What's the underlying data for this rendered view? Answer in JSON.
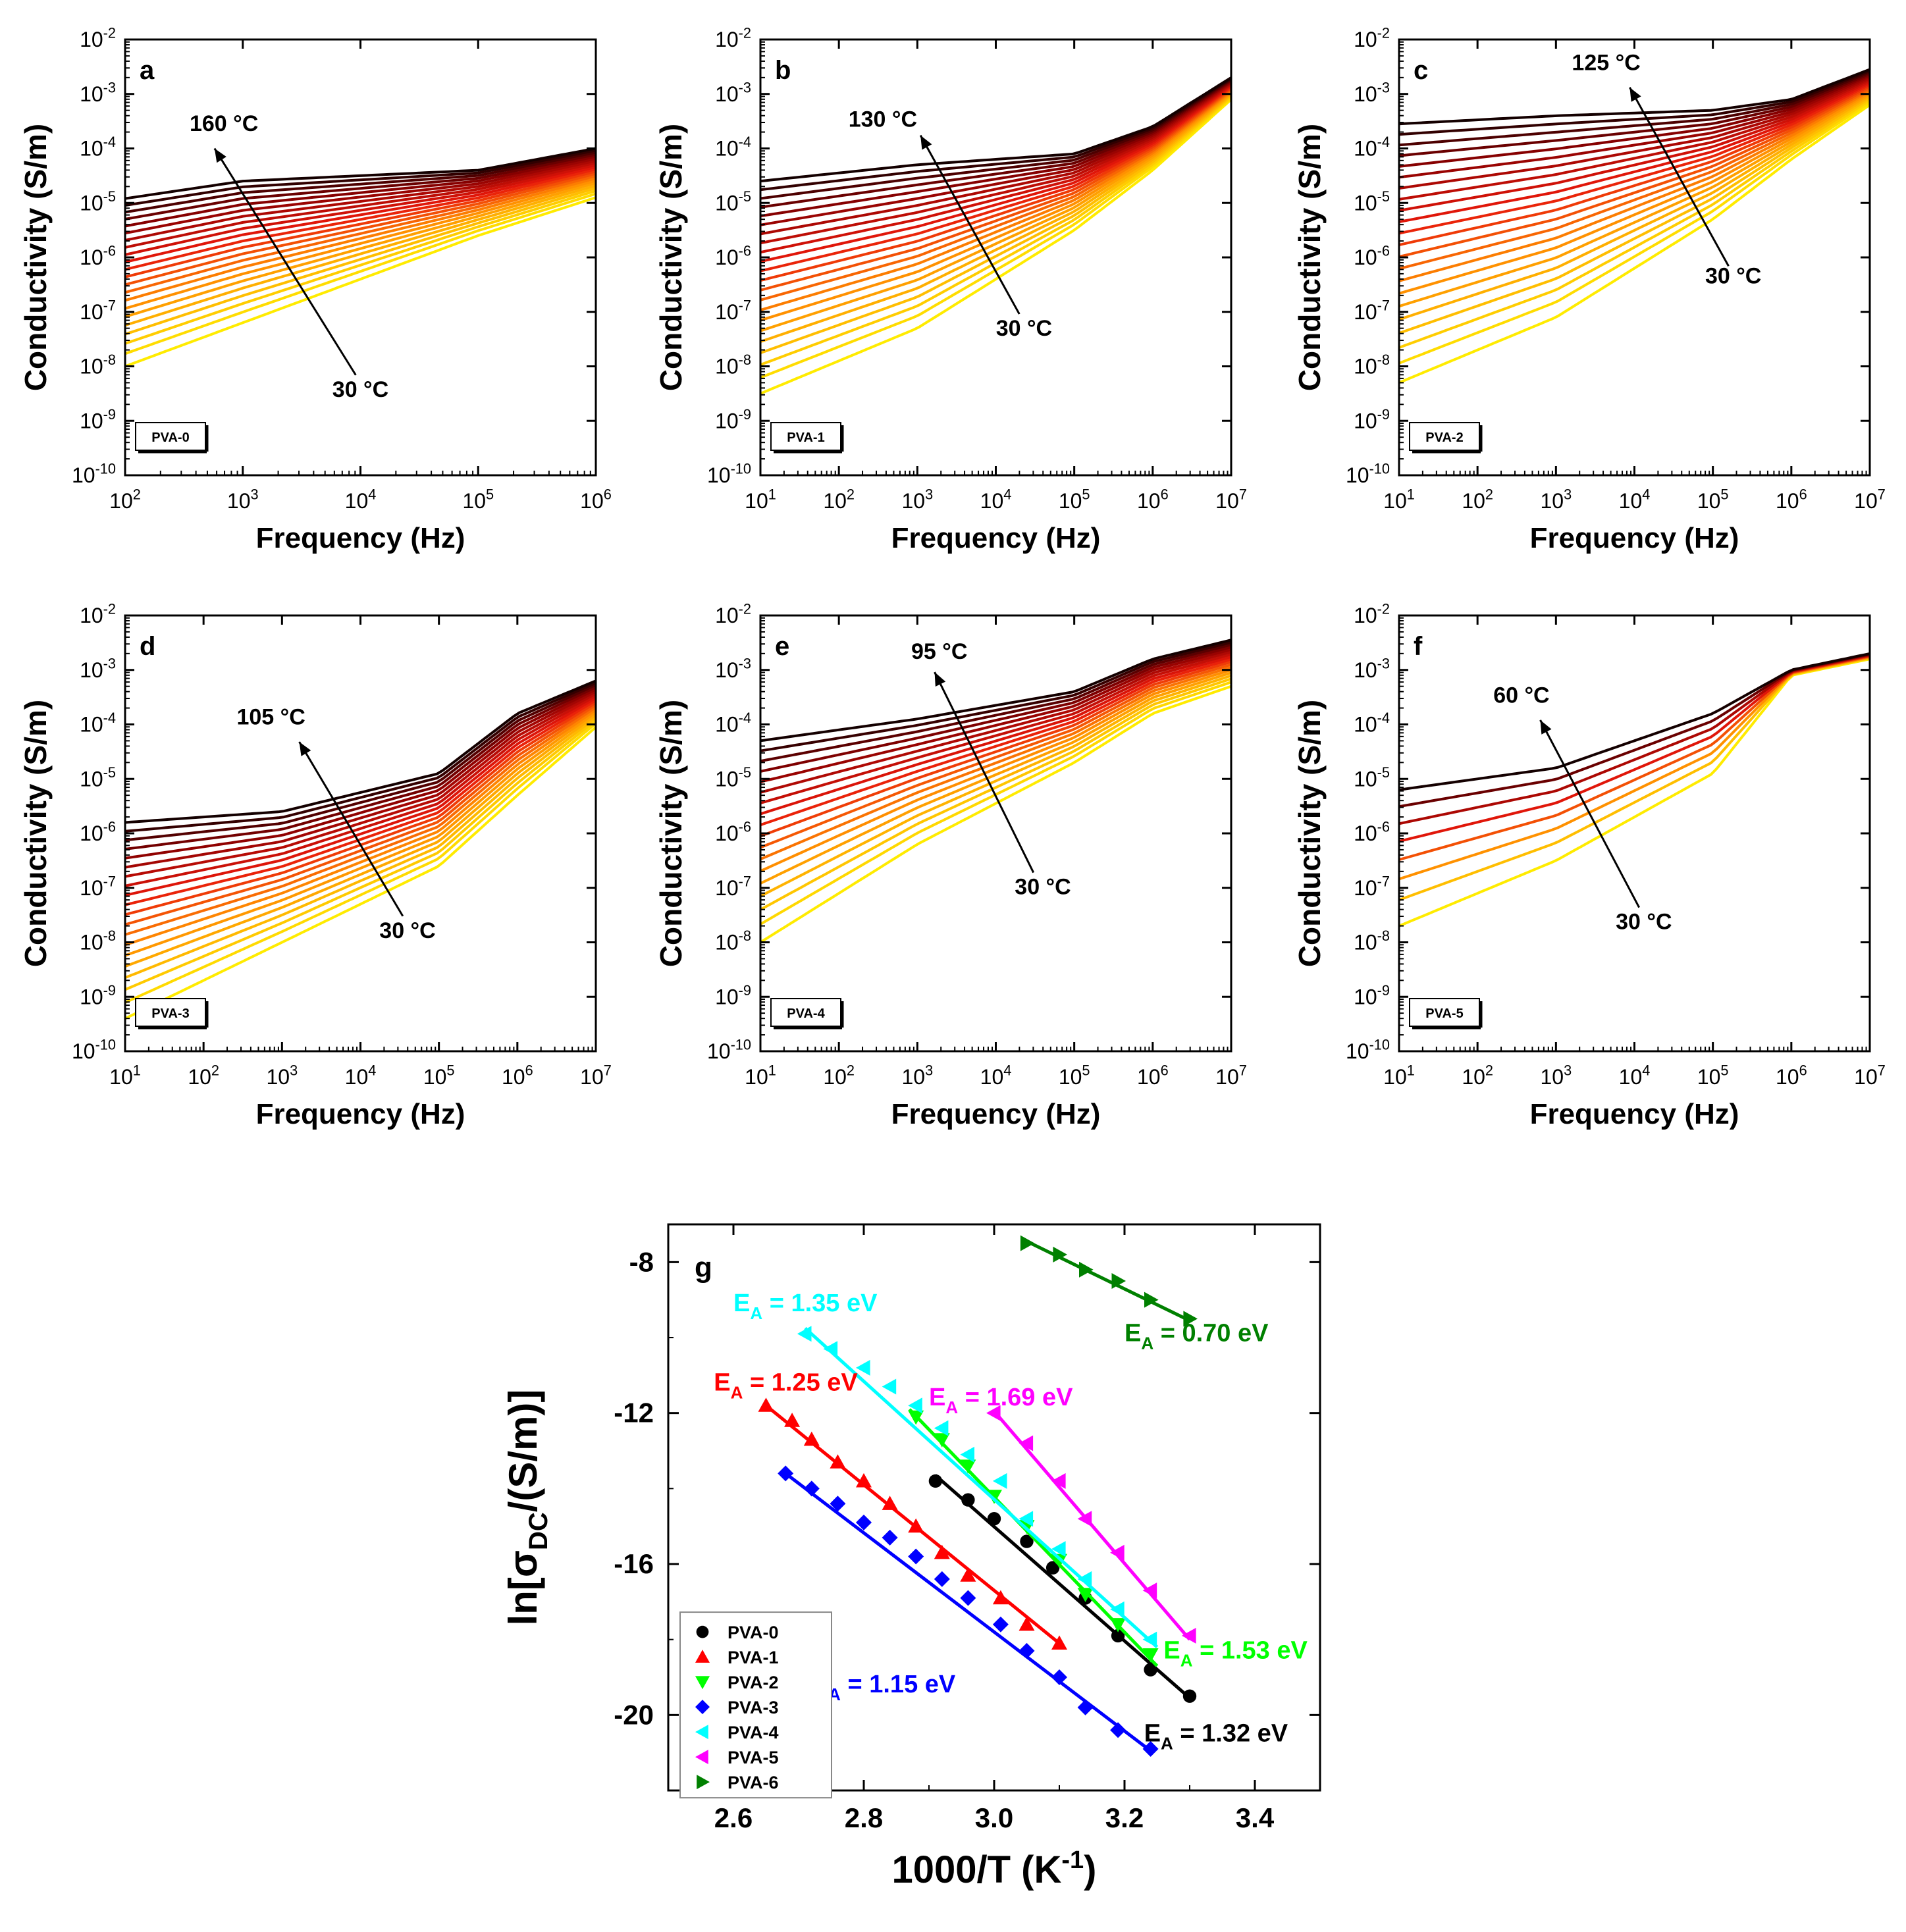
{
  "chart_data": [
    {
      "type": "line",
      "panel_letter": "a",
      "sample_tag": "PVA-0",
      "xlabel": "Frequency (Hz)",
      "ylabel": "Conductivity (S/m)",
      "xlim_exp": [
        2,
        6
      ],
      "ylim_exp": [
        -10,
        -2
      ],
      "x_ticks": [
        "10^2",
        "10^3",
        "10^4",
        "10^5",
        "10^6"
      ],
      "y_ticks": [
        "10^-10",
        "10^-9",
        "10^-8",
        "10^-7",
        "10^-6",
        "10^-5",
        "10^-4",
        "10^-3",
        "10^-2"
      ],
      "temp_high_label": "160 °C",
      "temp_low_label": "30 °C",
      "curve_count": 22,
      "coldest_curve_log10": [
        [
          2,
          -8.0
        ],
        [
          3,
          -7.2
        ],
        [
          4,
          -6.4
        ],
        [
          5,
          -5.6
        ],
        [
          6,
          -4.9
        ]
      ],
      "hottest_curve_log10": [
        [
          2,
          -4.92
        ],
        [
          3,
          -4.6
        ],
        [
          4,
          -4.5
        ],
        [
          5,
          -4.4
        ],
        [
          6,
          -4.0
        ]
      ]
    },
    {
      "type": "line",
      "panel_letter": "b",
      "sample_tag": "PVA-1",
      "xlabel": "Frequency (Hz)",
      "ylabel": "Conductivity (S/m)",
      "xlim_exp": [
        1,
        7
      ],
      "ylim_exp": [
        -10,
        -2
      ],
      "x_ticks": [
        "10^1",
        "10^2",
        "10^3",
        "10^4",
        "10^5",
        "10^6",
        "10^7"
      ],
      "y_ticks": [
        "10^-10",
        "10^-9",
        "10^-8",
        "10^-7",
        "10^-6",
        "10^-5",
        "10^-4",
        "10^-3",
        "10^-2"
      ],
      "temp_high_label": "130 °C",
      "temp_low_label": "30 °C",
      "curve_count": 22,
      "coldest_curve_log10": [
        [
          1,
          -8.5
        ],
        [
          3,
          -7.3
        ],
        [
          5,
          -5.5
        ],
        [
          6,
          -4.4
        ],
        [
          7,
          -3.1
        ]
      ],
      "hottest_curve_log10": [
        [
          1,
          -4.6
        ],
        [
          3,
          -4.3
        ],
        [
          5,
          -4.1
        ],
        [
          6,
          -3.6
        ],
        [
          7,
          -2.7
        ]
      ]
    },
    {
      "type": "line",
      "panel_letter": "c",
      "sample_tag": "PVA-2",
      "xlabel": "Frequency (Hz)",
      "ylabel": "Conductivity (S/m)",
      "xlim_exp": [
        1,
        7
      ],
      "ylim_exp": [
        -10,
        -2
      ],
      "x_ticks": [
        "10^1",
        "10^2",
        "10^3",
        "10^4",
        "10^5",
        "10^6",
        "10^7"
      ],
      "y_ticks": [
        "10^-10",
        "10^-9",
        "10^-8",
        "10^-7",
        "10^-6",
        "10^-5",
        "10^-4",
        "10^-3",
        "10^-2"
      ],
      "temp_high_label": "125 °C",
      "temp_low_label": "30 °C",
      "curve_count": 22,
      "coldest_curve_log10": [
        [
          1,
          -8.3
        ],
        [
          3,
          -7.1
        ],
        [
          5,
          -5.3
        ],
        [
          6,
          -4.2
        ],
        [
          7,
          -3.2
        ]
      ],
      "hottest_curve_log10": [
        [
          1,
          -3.55
        ],
        [
          3,
          -3.4
        ],
        [
          5,
          -3.3
        ],
        [
          6,
          -3.1
        ],
        [
          7,
          -2.55
        ]
      ]
    },
    {
      "type": "line",
      "panel_letter": "d",
      "sample_tag": "PVA-3",
      "xlabel": "Frequency (Hz)",
      "ylabel": "Conductivity (S/m)",
      "xlim_exp": [
        1,
        7
      ],
      "ylim_exp": [
        -10,
        -2
      ],
      "x_ticks": [
        "10^1",
        "10^2",
        "10^3",
        "10^4",
        "10^5",
        "10^6",
        "10^7"
      ],
      "y_ticks": [
        "10^-10",
        "10^-9",
        "10^-8",
        "10^-7",
        "10^-6",
        "10^-5",
        "10^-4",
        "10^-3",
        "10^-2"
      ],
      "temp_high_label": "105 °C",
      "temp_low_label": "30 °C",
      "curve_count": 20,
      "coldest_curve_log10": [
        [
          1,
          -9.4
        ],
        [
          3,
          -8.0
        ],
        [
          5,
          -6.6
        ],
        [
          6,
          -5.3
        ],
        [
          7,
          -4.05
        ]
      ],
      "hottest_curve_log10": [
        [
          1,
          -5.8
        ],
        [
          3,
          -5.6
        ],
        [
          5,
          -4.9
        ],
        [
          6,
          -3.8
        ],
        [
          7,
          -3.2
        ]
      ]
    },
    {
      "type": "line",
      "panel_letter": "e",
      "sample_tag": "PVA-4",
      "xlabel": "Frequency (Hz)",
      "ylabel": "Conductivity (S/m)",
      "xlim_exp": [
        1,
        7
      ],
      "ylim_exp": [
        -10,
        -2
      ],
      "x_ticks": [
        "10^1",
        "10^2",
        "10^3",
        "10^4",
        "10^5",
        "10^6",
        "10^7"
      ],
      "y_ticks": [
        "10^-10",
        "10^-9",
        "10^-8",
        "10^-7",
        "10^-6",
        "10^-5",
        "10^-4",
        "10^-3",
        "10^-2"
      ],
      "temp_high_label": "95 °C",
      "temp_low_label": "30 °C",
      "curve_count": 18,
      "coldest_curve_log10": [
        [
          1,
          -8.0
        ],
        [
          3,
          -6.2
        ],
        [
          5,
          -4.7
        ],
        [
          6,
          -3.8
        ],
        [
          7,
          -3.3
        ]
      ],
      "hottest_curve_log10": [
        [
          1,
          -4.3
        ],
        [
          3,
          -3.9
        ],
        [
          5,
          -3.4
        ],
        [
          6,
          -2.8
        ],
        [
          7,
          -2.45
        ]
      ]
    },
    {
      "type": "line",
      "panel_letter": "f",
      "sample_tag": "PVA-5",
      "xlabel": "Frequency (Hz)",
      "ylabel": "Conductivity (S/m)",
      "xlim_exp": [
        1,
        7
      ],
      "ylim_exp": [
        -10,
        -2
      ],
      "x_ticks": [
        "10^1",
        "10^2",
        "10^3",
        "10^4",
        "10^5",
        "10^6",
        "10^7"
      ],
      "y_ticks": [
        "10^-10",
        "10^-9",
        "10^-8",
        "10^-7",
        "10^-6",
        "10^-5",
        "10^-4",
        "10^-3",
        "10^-2"
      ],
      "temp_high_label": "60 °C",
      "temp_low_label": "30 °C",
      "curve_count": 8,
      "coldest_curve_log10": [
        [
          1,
          -7.7
        ],
        [
          3,
          -6.5
        ],
        [
          5,
          -4.9
        ],
        [
          6,
          -3.1
        ],
        [
          7,
          -2.8
        ]
      ],
      "hottest_curve_log10": [
        [
          1,
          -5.2
        ],
        [
          3,
          -4.8
        ],
        [
          5,
          -3.8
        ],
        [
          6,
          -3.0
        ],
        [
          7,
          -2.7
        ]
      ]
    },
    {
      "type": "scatter",
      "panel_letter": "g",
      "xlabel": "1000/T (K",
      "xlabel_sup": "-1",
      "xlabel_close": ")",
      "ylabel": "ln[σ",
      "ylabel_sub": "DC",
      "ylabel_close": "/(S/m)]",
      "xlim": [
        2.5,
        3.5
      ],
      "ylim": [
        -22,
        -7
      ],
      "x_ticks": [
        "2.6",
        "2.8",
        "3.0",
        "3.2",
        "3.4"
      ],
      "y_ticks": [
        "-8",
        "-12",
        "-16",
        "-20"
      ],
      "ea_prefix": "E",
      "ea_sub": "A",
      "series": [
        {
          "name": "PVA-0",
          "color": "#000000",
          "marker": "circle",
          "ea_label": " = 1.32 eV",
          "x": [
            2.91,
            2.96,
            3.0,
            3.05,
            3.09,
            3.14,
            3.19,
            3.24,
            3.3
          ],
          "y": [
            -13.8,
            -14.3,
            -14.8,
            -15.4,
            -16.1,
            -16.9,
            -17.9,
            -18.8,
            -19.5
          ],
          "fit": [
            2.91,
            -13.65,
            3.3,
            -19.55
          ]
        },
        {
          "name": "PVA-1",
          "color": "#ff0000",
          "marker": "triangle-up",
          "ea_label": " = 1.25 eV",
          "x": [
            2.65,
            2.69,
            2.72,
            2.76,
            2.8,
            2.84,
            2.88,
            2.92,
            2.96,
            3.01,
            3.05,
            3.1
          ],
          "y": [
            -11.8,
            -12.2,
            -12.7,
            -13.3,
            -13.8,
            -14.4,
            -15.0,
            -15.7,
            -16.3,
            -16.9,
            -17.6,
            -18.1
          ],
          "fit": [
            2.65,
            -11.8,
            3.1,
            -18.1
          ]
        },
        {
          "name": "PVA-2",
          "color": "#00ff00",
          "marker": "triangle-down",
          "ea_label": " = 1.53 eV",
          "x": [
            2.88,
            2.92,
            2.96,
            3.0,
            3.05,
            3.1,
            3.14,
            3.19,
            3.24
          ],
          "y": [
            -12.1,
            -12.7,
            -13.4,
            -14.2,
            -15.0,
            -15.9,
            -16.8,
            -17.6,
            -18.4
          ],
          "fit": [
            2.87,
            -11.9,
            3.25,
            -18.7
          ]
        },
        {
          "name": "PVA-3",
          "color": "#0000ff",
          "marker": "diamond",
          "ea_label": " = 1.15 eV",
          "x": [
            2.68,
            2.72,
            2.76,
            2.8,
            2.84,
            2.88,
            2.92,
            2.96,
            3.01,
            3.05,
            3.1,
            3.14,
            3.19,
            3.24
          ],
          "y": [
            -13.6,
            -14.0,
            -14.4,
            -14.9,
            -15.3,
            -15.8,
            -16.4,
            -16.9,
            -17.6,
            -18.3,
            -19.0,
            -19.8,
            -20.4,
            -20.9
          ],
          "fit": [
            2.68,
            -13.6,
            3.24,
            -20.95
          ]
        },
        {
          "name": "PVA-4",
          "color": "#00ffff",
          "marker": "triangle-left",
          "ea_label": " = 1.35 eV",
          "x": [
            2.71,
            2.75,
            2.8,
            2.84,
            2.88,
            2.92,
            2.96,
            3.01,
            3.05,
            3.1,
            3.14,
            3.19,
            3.24
          ],
          "y": [
            -9.9,
            -10.3,
            -10.8,
            -11.3,
            -11.8,
            -12.4,
            -13.1,
            -13.8,
            -14.8,
            -15.6,
            -16.4,
            -17.2,
            -18.0
          ],
          "fit": [
            2.71,
            -9.75,
            3.25,
            -18.2
          ]
        },
        {
          "name": "PVA-5",
          "color": "#ff00ff",
          "marker": "triangle-left",
          "ea_label": " = 1.69 eV",
          "x": [
            3.0,
            3.05,
            3.1,
            3.14,
            3.19,
            3.24,
            3.3
          ],
          "y": [
            -12.0,
            -12.8,
            -13.8,
            -14.8,
            -15.7,
            -16.7,
            -17.9
          ],
          "fit": [
            3.0,
            -11.95,
            3.3,
            -18.0
          ]
        },
        {
          "name": "PVA-6",
          "color": "#008000",
          "marker": "triangle-right",
          "ea_label": " = 0.70 eV",
          "x": [
            3.05,
            3.1,
            3.14,
            3.19,
            3.24,
            3.3
          ],
          "y": [
            -7.5,
            -7.8,
            -8.2,
            -8.5,
            -9.0,
            -9.5
          ],
          "fit": [
            3.05,
            -7.45,
            3.3,
            -9.55
          ]
        }
      ]
    }
  ]
}
